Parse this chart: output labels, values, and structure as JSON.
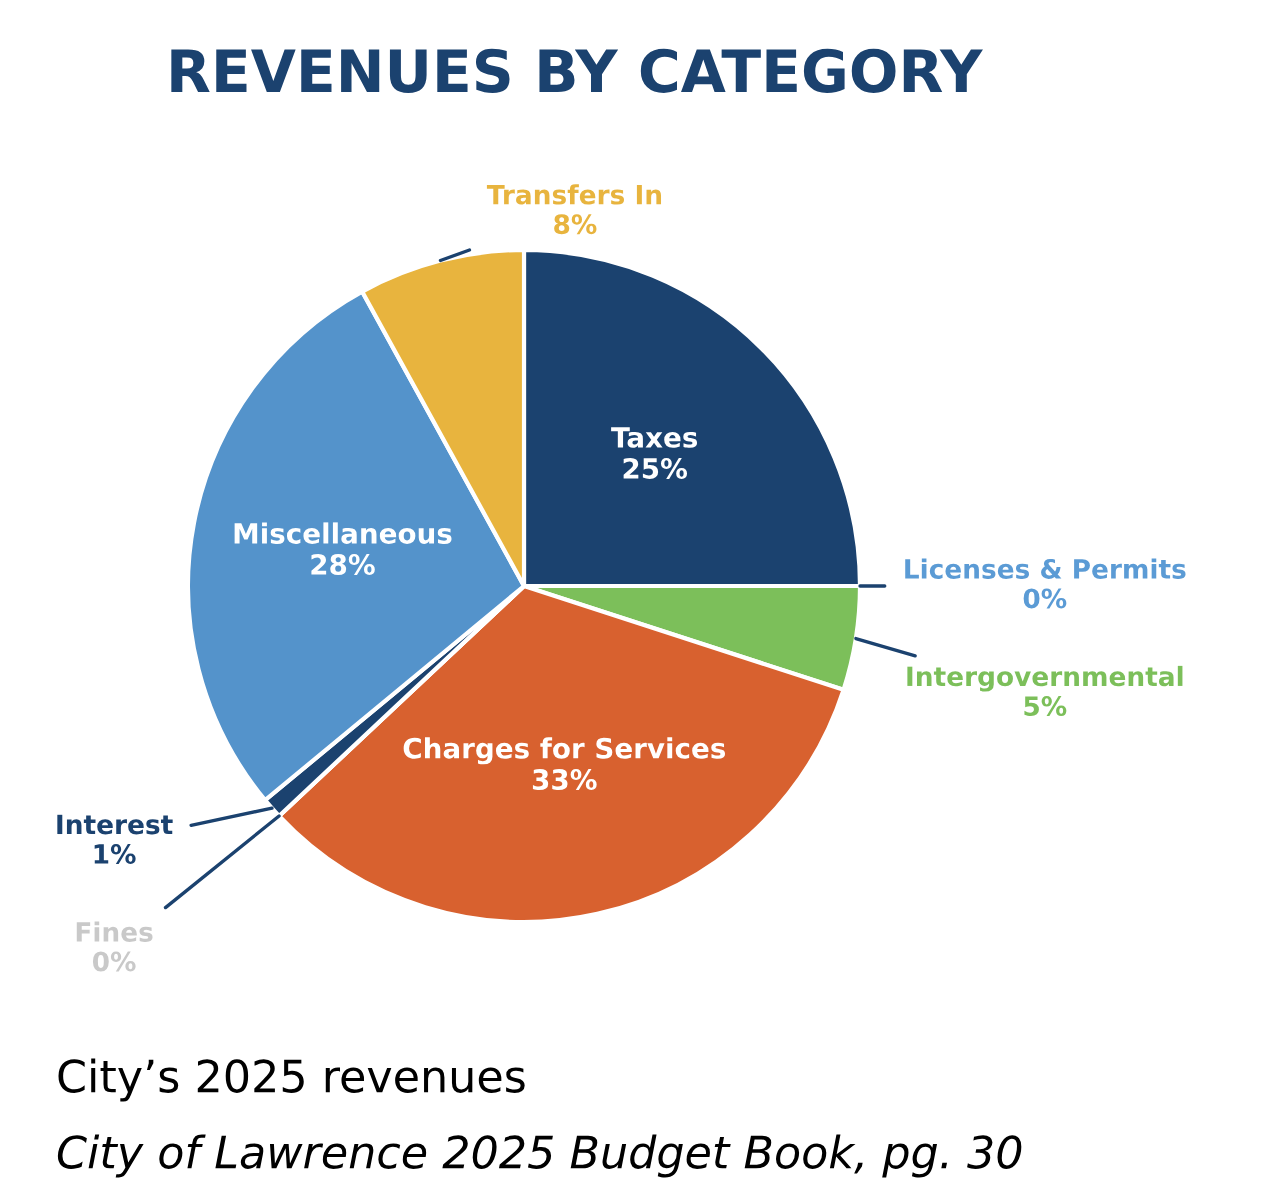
{
  "chart_data": {
    "type": "pie",
    "title": "REVENUES BY CATEGORY",
    "categories": [
      "Taxes",
      "Licenses & Permits",
      "Intergovernmental",
      "Charges for Services",
      "Fines",
      "Interest",
      "Miscellaneous",
      "Transfers In"
    ],
    "values": [
      25,
      0,
      5,
      33,
      0,
      1,
      28,
      8
    ],
    "value_labels": [
      "25%",
      "0%",
      "5%",
      "33%",
      "0%",
      "1%",
      "28%",
      "8%"
    ],
    "colors": [
      "#1b426f",
      "#5b9bd5",
      "#7cbf5a",
      "#d8612f",
      "#c9c9c9",
      "#1b426f",
      "#5493cb",
      "#e8b43e"
    ],
    "annotations": [
      "City’s 2025 revenues",
      "City of Lawrence 2025 Budget Book, pg. 30"
    ]
  }
}
